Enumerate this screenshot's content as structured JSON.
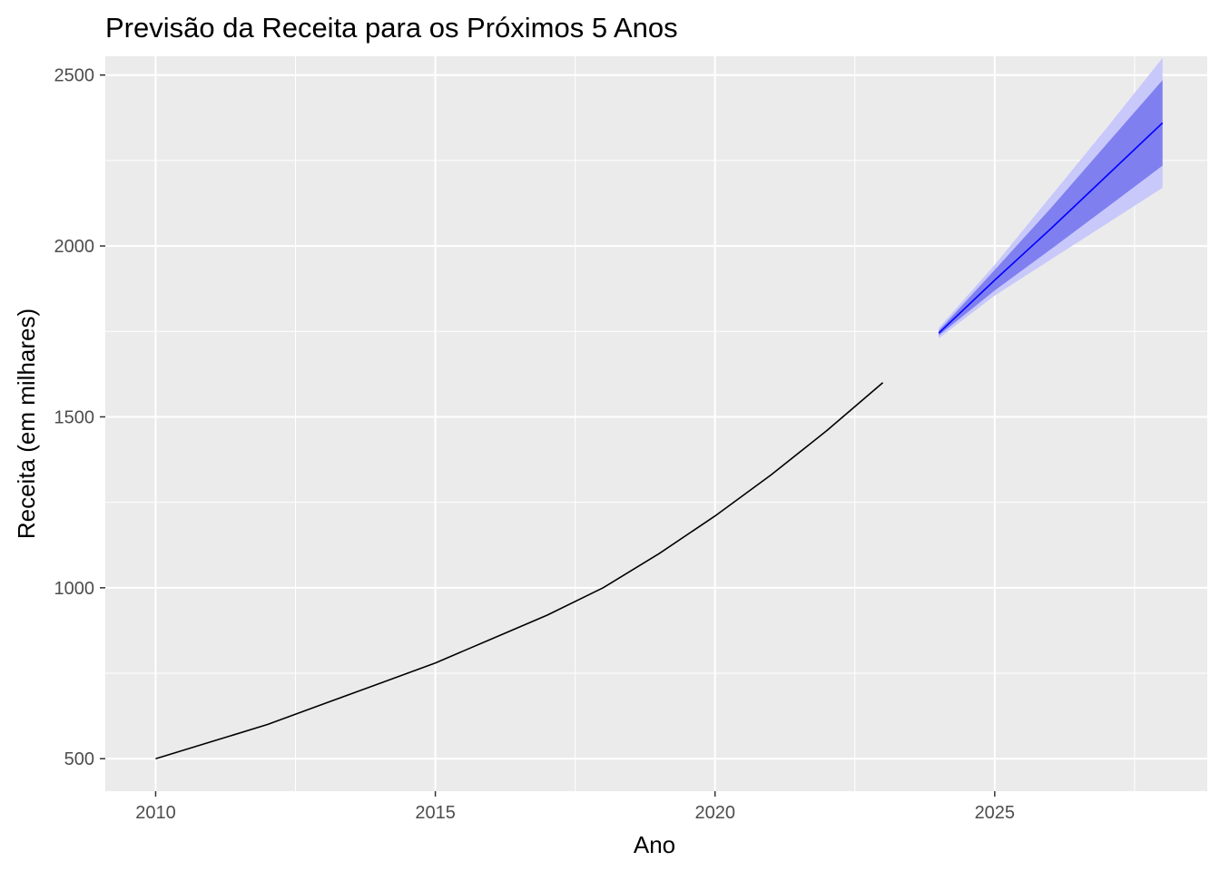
{
  "chart_data": {
    "type": "line",
    "title": "Previsão da Receita para os Próximos 5 Anos",
    "xlabel": "Ano",
    "ylabel": "Receita (em milhares)",
    "xlim": [
      2009.1,
      2028.8
    ],
    "ylim": [
      405,
      2555
    ],
    "x_ticks": [
      2010,
      2015,
      2020,
      2025
    ],
    "y_ticks": [
      500,
      1000,
      1500,
      2000,
      2500
    ],
    "grid": true,
    "legend": "none",
    "series": [
      {
        "role": "historical",
        "color": "#000000",
        "x": [
          2010,
          2011,
          2012,
          2013,
          2014,
          2015,
          2016,
          2017,
          2018,
          2019,
          2020,
          2021,
          2022,
          2023
        ],
        "y": [
          500,
          550,
          600,
          660,
          720,
          780,
          850,
          920,
          1000,
          1100,
          1210,
          1330,
          1460,
          1600
        ]
      },
      {
        "role": "forecast",
        "color": "#0000ff",
        "x": [
          2024,
          2025,
          2026,
          2027,
          2028
        ],
        "y": [
          1745,
          1900,
          2050,
          2205,
          2360
        ],
        "lo80": [
          1738,
          1870,
          1990,
          2112,
          2235
        ],
        "hi80": [
          1752,
          1930,
          2110,
          2298,
          2485
        ],
        "lo95": [
          1730,
          1855,
          1960,
          2065,
          2170
        ],
        "hi95": [
          1760,
          1945,
          2145,
          2345,
          2550
        ]
      }
    ]
  },
  "colors": {
    "panel_bg": "#ebebeb",
    "grid": "#ffffff",
    "band95": "#c8c8fa",
    "band80": "#7f7ff0",
    "forecast_line": "#0000ff"
  }
}
